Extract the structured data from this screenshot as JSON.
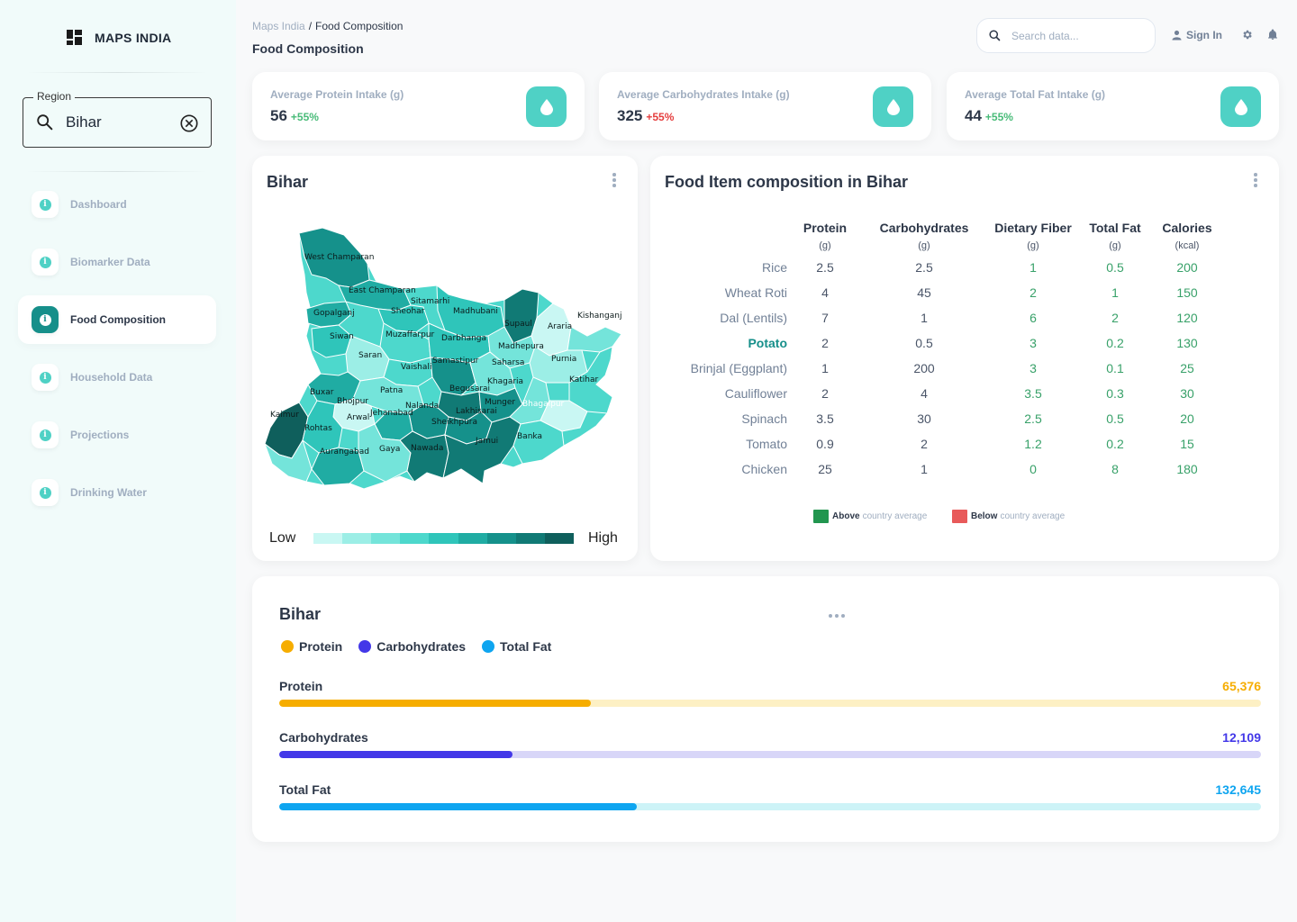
{
  "app": {
    "name": "MAPS INDIA"
  },
  "sidebar": {
    "region_label": "Region",
    "region_value": "Bihar",
    "items": [
      {
        "label": "Dashboard",
        "active": false
      },
      {
        "label": "Biomarker Data",
        "active": false
      },
      {
        "label": "Food Composition",
        "active": true
      },
      {
        "label": "Household Data",
        "active": false
      },
      {
        "label": "Projections",
        "active": false
      },
      {
        "label": "Drinking Water",
        "active": false
      }
    ]
  },
  "header": {
    "breadcrumb_root": "Maps India",
    "breadcrumb_sep": "/",
    "breadcrumb_current": "Food Composition",
    "page_title": "Food Composition",
    "search_placeholder": "Search data...",
    "signin_label": "Sign In"
  },
  "stats": [
    {
      "title": "Average Protein Intake (g)",
      "value": "56",
      "change": "+55%",
      "change_color": "#48bb78"
    },
    {
      "title": "Average Carbohydrates Intake (g)",
      "value": "325",
      "change": "+55%",
      "change_color": "#e53e3e"
    },
    {
      "title": "Average Total Fat Intake (g)",
      "value": "44",
      "change": "+55%",
      "change_color": "#48bb78"
    }
  ],
  "map": {
    "title": "Bihar",
    "legend_low": "Low",
    "legend_high": "High",
    "legend_colors": [
      "#c9f7f3",
      "#9ceee6",
      "#74e4da",
      "#4dd8cc",
      "#2fc5ba",
      "#20aca3",
      "#15918b",
      "#117a75",
      "#0f5f5c"
    ],
    "districts": [
      "West Champaran",
      "East Champaran",
      "Sitamarhi",
      "Gopalganj",
      "Sheohar",
      "Madhubani",
      "Supaul",
      "Araria",
      "Kishanganj",
      "Siwan",
      "Muzaffarpur",
      "Darbhanga",
      "Madhepura",
      "Saran",
      "Vaishali",
      "Samastipur",
      "Saharsa",
      "Purnia",
      "Buxar",
      "Patna",
      "Begusarai",
      "Khagaria",
      "Katihar",
      "Bhojpur",
      "Nalanda",
      "Munger",
      "Bhagalpur",
      "Kaimur",
      "Arwal",
      "Jehanabad",
      "Lakhisarai",
      "Sheikhpura",
      "Rohtas",
      "Aurangabad",
      "Gaya",
      "Nawada",
      "Jamui",
      "Banka"
    ]
  },
  "table": {
    "title": "Food Item composition in Bihar",
    "columns": [
      {
        "name": "Protein",
        "unit": "(g)"
      },
      {
        "name": "Carbohydrates",
        "unit": "(g)"
      },
      {
        "name": "Dietary Fiber",
        "unit": "(g)"
      },
      {
        "name": "Total Fat",
        "unit": "(g)"
      },
      {
        "name": "Calories",
        "unit": "(kcal)"
      }
    ],
    "rows": [
      {
        "item": "Rice",
        "values": [
          "2.5",
          "2.5",
          "1",
          "0.5",
          "200"
        ]
      },
      {
        "item": "Wheat Roti",
        "values": [
          "4",
          "45",
          "2",
          "1",
          "150"
        ]
      },
      {
        "item": "Dal (Lentils)",
        "values": [
          "7",
          "1",
          "6",
          "2",
          "120"
        ]
      },
      {
        "item": "Potato",
        "values": [
          "2",
          "0.5",
          "3",
          "0.2",
          "130"
        ],
        "highlight": true
      },
      {
        "item": "Brinjal (Eggplant)",
        "values": [
          "1",
          "200",
          "3",
          "0.1",
          "25"
        ]
      },
      {
        "item": "Cauliflower",
        "values": [
          "2",
          "4",
          "3.5",
          "0.3",
          "30"
        ]
      },
      {
        "item": "Spinach",
        "values": [
          "3.5",
          "30",
          "2.5",
          "0.5",
          "20"
        ]
      },
      {
        "item": "Tomato",
        "values": [
          "0.9",
          "2",
          "1.2",
          "0.2",
          "15"
        ]
      },
      {
        "item": "Chicken",
        "values": [
          "25",
          "1",
          "0",
          "8",
          "180"
        ]
      }
    ],
    "legend_above_bold": "Above",
    "legend_above_rest": "country average",
    "legend_below_bold": "Below",
    "legend_below_rest": "country average",
    "above_color": "#22964f",
    "below_color": "#e85a5a"
  },
  "summary": {
    "title": "Bihar",
    "legend": [
      {
        "label": "Protein",
        "color": "#f6ad00"
      },
      {
        "label": "Carbohydrates",
        "color": "#4338e8"
      },
      {
        "label": "Total Fat",
        "color": "#0ea5f0"
      }
    ],
    "bars": [
      {
        "label": "Protein",
        "value": "65,376",
        "fill_fraction": 0.317,
        "color": "#f6ad00",
        "track": "#fdf0c4"
      },
      {
        "label": "Carbohydrates",
        "value": "12,109",
        "fill_fraction": 0.238,
        "color": "#4338e8",
        "track": "#d8d6f8"
      },
      {
        "label": "Total Fat",
        "value": "132,645",
        "fill_fraction": 0.364,
        "color": "#0ea5f0",
        "track": "#cdf3f7"
      }
    ]
  }
}
